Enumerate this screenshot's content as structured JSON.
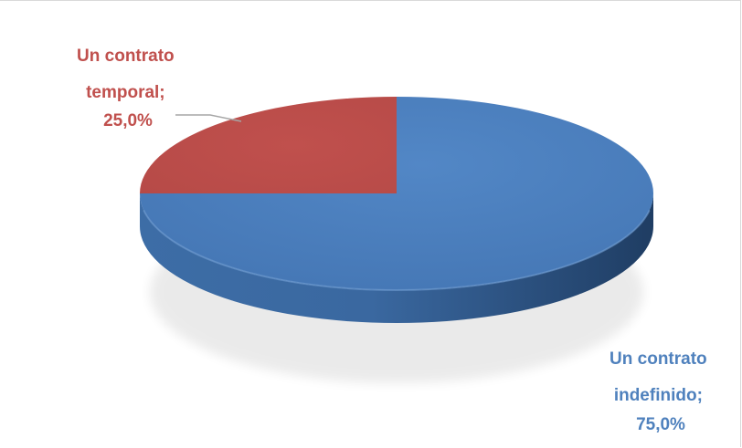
{
  "chart_data": {
    "type": "pie",
    "style": "3d",
    "title": "",
    "legend": "none",
    "slices": [
      {
        "name": "Un contrato indefinido",
        "value": 75.0,
        "label_lines": [
          "Un contrato",
          "indefinido;",
          "75,0%"
        ],
        "color": "#4f81bd"
      },
      {
        "name": "Un contrato temporal",
        "value": 25.0,
        "label_lines": [
          "Un contrato",
          "temporal;",
          "25,0%"
        ],
        "color": "#c0504d"
      }
    ],
    "label_colors": {
      "indefinido": "#4f81bd",
      "temporal": "#c0504d"
    }
  }
}
